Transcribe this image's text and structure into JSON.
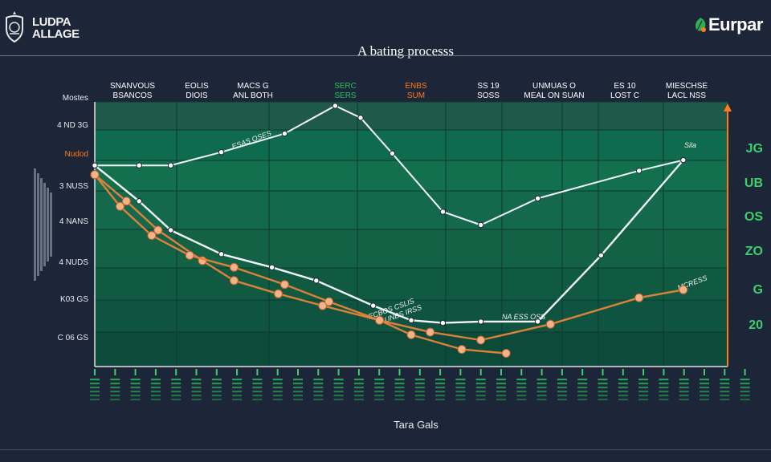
{
  "header": {
    "logo_line1": "LUDPA",
    "logo_line2": "ALLAGE",
    "brand": "Eurpar",
    "title": "A bating processs"
  },
  "chart_data": {
    "type": "line",
    "title": "A bating processs",
    "xlabel": "Tara Gals",
    "ylabel": "",
    "column_headers": [
      {
        "line1": "SNANVOUS",
        "line2": "BSANCOS",
        "color": "white"
      },
      {
        "line1": "EOLIS",
        "line2": "DIOIS",
        "color": "white"
      },
      {
        "line1": "MACS G",
        "line2": "ANL BOTH",
        "color": "white"
      },
      {
        "line1": "SERC",
        "line2": "SERS",
        "color": "green"
      },
      {
        "line1": "ENBS",
        "line2": "SUM",
        "color": "orange"
      },
      {
        "line1": "SS 19",
        "line2": "SOSS",
        "color": "white"
      },
      {
        "line1": "UNMUAS O",
        "line2": "MEAL ON SUAN",
        "color": "white"
      },
      {
        "line1": "ES 10",
        "line2": "LOST C",
        "color": "white"
      },
      {
        "line1": "MIESCHSE",
        "line2": "LACL NSS",
        "color": "white"
      }
    ],
    "y_tick_labels": [
      "Mostes",
      "4 ND 3G",
      "Nudod",
      "3 NUSS",
      "4 NANS",
      "4 NUDS",
      "K03 GS",
      "C 06 GS"
    ],
    "right_labels": [
      "JG",
      "UB",
      "OS",
      "ZO",
      "G",
      "20"
    ],
    "annotations": [
      "ESAS OSES",
      "Sila",
      "ECBOS CSLIS",
      "MCRESS",
      "UNBS IRSS",
      "NA ESS OSS"
    ],
    "series": [
      {
        "color": "#ffffff",
        "x": [
          0,
          0.7,
          1.2,
          2,
          2.8,
          3.5,
          4.4,
          5,
          5.5,
          6.1,
          7,
          8,
          9.3
        ],
        "y": [
          20.2,
          17.5,
          15.3,
          13.5,
          12.5,
          11.5,
          9.6,
          8.5,
          8.3,
          8.4,
          8.4,
          13.4,
          20.6
        ]
      },
      {
        "color": "#ffffff",
        "x": [
          0,
          0.7,
          1.2,
          2,
          3,
          3.8,
          4.2,
          4.7,
          5.5,
          6.1,
          7,
          8.6,
          9.3
        ],
        "y": [
          20.2,
          20.2,
          20.2,
          21.2,
          22.6,
          24.7,
          23.8,
          21.1,
          16.7,
          15.7,
          17.7,
          19.8,
          20.6
        ]
      },
      {
        "color": "#e8843a",
        "x": [
          0,
          0.5,
          1,
          1.7,
          2.2,
          2.9,
          3.6,
          4.5,
          5.3,
          6.1,
          7.2,
          8.6,
          9.3
        ],
        "y": [
          19.5,
          17.5,
          15.3,
          13,
          11.5,
          10.5,
          9.6,
          8.5,
          7.6,
          7,
          8.2,
          10.2,
          10.8
        ]
      },
      {
        "color": "#e8843a",
        "x": [
          0,
          0.4,
          0.9,
          1.5,
          2.2,
          3,
          3.7,
          4.5,
          5,
          5.8,
          6.5
        ],
        "y": [
          19.5,
          17.1,
          14.9,
          13.4,
          12.5,
          11.2,
          9.9,
          8.5,
          7.4,
          6.3,
          6
        ]
      }
    ],
    "xlim": [
      0,
      10
    ],
    "ylim": [
      5,
      25
    ],
    "grid": true
  }
}
